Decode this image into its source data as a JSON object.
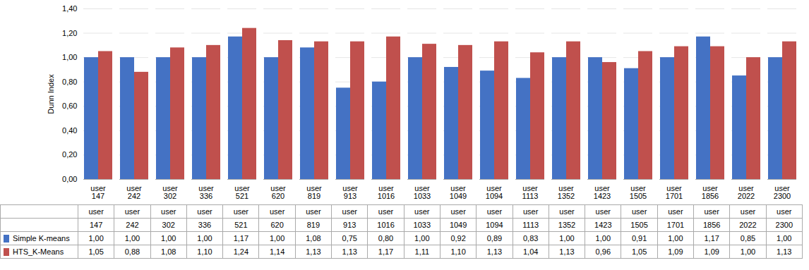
{
  "chart_data": {
    "type": "bar",
    "categories": [
      "user\n147",
      "user\n242",
      "user\n302",
      "user\n336",
      "user\n521",
      "user\n620",
      "user\n819",
      "user\n913",
      "user\n1016",
      "user\n1033",
      "user\n1049",
      "user\n1094",
      "user\n1113",
      "user\n1352",
      "user\n1423",
      "user\n1505",
      "user\n1701",
      "user\n1856",
      "user\n2022",
      "user\n2300"
    ],
    "series": [
      {
        "name": "Simple K-means",
        "color": "#4472C4",
        "values": [
          1.0,
          1.0,
          1.0,
          1.0,
          1.17,
          1.0,
          1.08,
          0.75,
          0.8,
          1.0,
          0.92,
          0.89,
          0.83,
          1.0,
          1.0,
          0.91,
          1.0,
          1.17,
          0.85,
          1.0
        ],
        "value_labels": [
          "1,00",
          "1,00",
          "1,00",
          "1,00",
          "1,17",
          "1,00",
          "1,08",
          "0,75",
          "0,80",
          "1,00",
          "0,92",
          "0,89",
          "0,83",
          "1,00",
          "1,00",
          "0,91",
          "1,00",
          "1,17",
          "0,85",
          "1,00"
        ]
      },
      {
        "name": "HTS_K-Means",
        "color": "#C0504D",
        "values": [
          1.05,
          0.88,
          1.08,
          1.1,
          1.24,
          1.14,
          1.13,
          1.13,
          1.17,
          1.11,
          1.1,
          1.13,
          1.04,
          1.13,
          0.96,
          1.05,
          1.09,
          1.09,
          1.0,
          1.13
        ],
        "value_labels": [
          "1,05",
          "0,88",
          "1,08",
          "1,10",
          "1,24",
          "1,14",
          "1,13",
          "1,13",
          "1,17",
          "1,11",
          "1,10",
          "1,13",
          "1,04",
          "1,13",
          "0,96",
          "1,05",
          "1,09",
          "1,09",
          "1,00",
          "1,13"
        ]
      }
    ],
    "y_label": "Dunn Index",
    "ylim": [
      0.0,
      1.4
    ],
    "yticks": [
      {
        "value": 0.0,
        "label": "0,00"
      },
      {
        "value": 0.2,
        "label": "0,20"
      },
      {
        "value": 0.4,
        "label": "0,40"
      },
      {
        "value": 0.6,
        "label": "0,60"
      },
      {
        "value": 0.8,
        "label": "0,80"
      },
      {
        "value": 1.0,
        "label": "1,00"
      },
      {
        "value": 1.2,
        "label": "1,20"
      },
      {
        "value": 1.4,
        "label": "1,40"
      }
    ],
    "grid": true,
    "legend": "bottom",
    "data_labels": true
  }
}
